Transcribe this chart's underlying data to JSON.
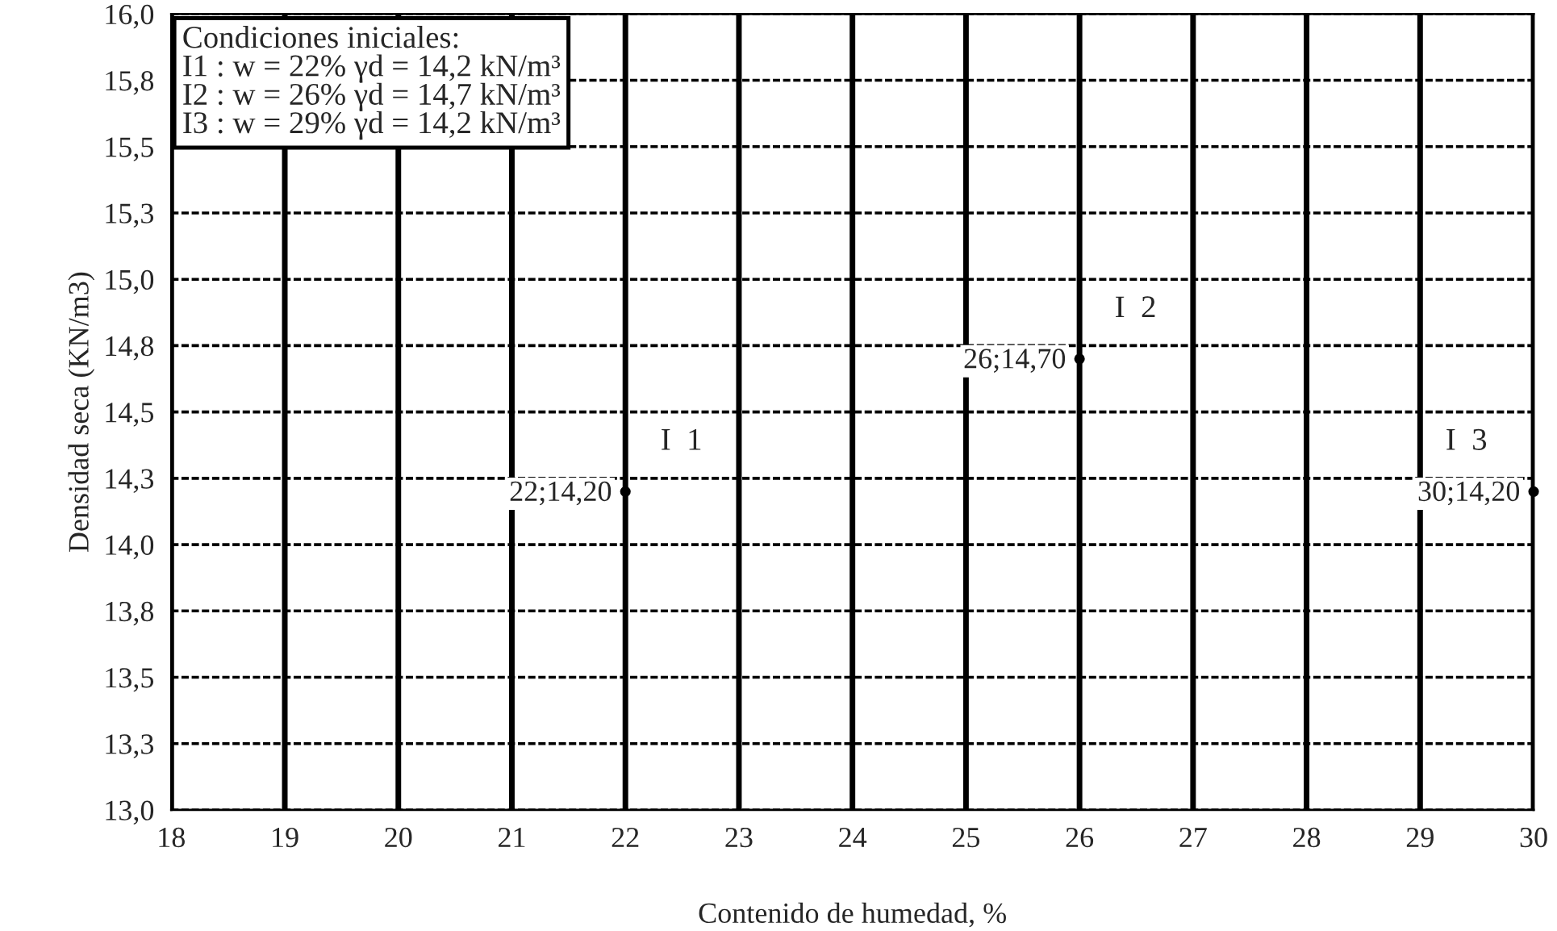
{
  "chart_data": {
    "type": "scatter",
    "xlabel": "Contenido de humedad, %",
    "ylabel": "Densidad seca (KN/m3)",
    "x": [
      22,
      26,
      30
    ],
    "values": [
      14.2,
      14.7,
      14.2
    ],
    "value_labels": [
      "22;14,20",
      "26;14,70",
      "30;14,20"
    ],
    "marker": "circle",
    "grid": true,
    "xlim": [
      18,
      30
    ],
    "xticks": [
      18,
      19,
      20,
      21,
      22,
      23,
      24,
      25,
      26,
      27,
      28,
      29,
      30
    ],
    "ylim": [
      13.0,
      16.0
    ],
    "yticks": [
      {
        "value": 13.0,
        "label": "13,0"
      },
      {
        "value": 13.25,
        "label": "13,3"
      },
      {
        "value": 13.5,
        "label": "13,5"
      },
      {
        "value": 13.75,
        "label": "13,8"
      },
      {
        "value": 14.0,
        "label": "14,0"
      },
      {
        "value": 14.25,
        "label": "14,3"
      },
      {
        "value": 14.5,
        "label": "14,5"
      },
      {
        "value": 14.75,
        "label": "14,8"
      },
      {
        "value": 15.0,
        "label": "15,0"
      },
      {
        "value": 15.25,
        "label": "15,3"
      },
      {
        "value": 15.5,
        "label": "15,5"
      },
      {
        "value": 15.75,
        "label": "15,8"
      },
      {
        "value": 16.0,
        "label": "16,0"
      }
    ],
    "annotations": [
      "Condiciones iniciales:\nI1 : w = 22% γd = 14,2 kN/m³\nI2 : w = 26% γd = 14,7 kN/m³\nI3 : w = 29% γd = 14,2 kN/m³",
      "I  1",
      "I  2",
      "I  3"
    ]
  }
}
